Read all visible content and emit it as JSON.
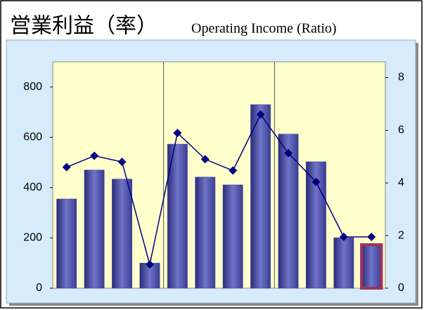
{
  "chart_data": {
    "type": "bar",
    "title": "営業利益（率）",
    "subtitle": "Operating Income (Ratio)",
    "categories": [
      null,
      null,
      null,
      null,
      null,
      null,
      null,
      null,
      null,
      null,
      null,
      null
    ],
    "series": [
      {
        "type": "bar",
        "color": "#4548a0",
        "values": [
          355,
          470,
          434,
          100,
          573,
          442,
          411,
          730,
          613,
          503,
          201,
          173
        ]
      },
      {
        "type": "line",
        "color": "#000080",
        "axis": "y2",
        "values": [
          4.6,
          5.03,
          4.8,
          0.9,
          5.9,
          4.9,
          4.47,
          6.6,
          5.13,
          4.04,
          1.95,
          1.95
        ]
      }
    ],
    "ylim": [
      0,
      900
    ],
    "yticks": [
      0,
      200,
      400,
      600,
      800
    ],
    "y2lim": [
      0,
      8.6
    ],
    "y2ticks": [
      0,
      2,
      4,
      6,
      8
    ],
    "highlight": {
      "index": 11,
      "color": "#a03060"
    }
  }
}
